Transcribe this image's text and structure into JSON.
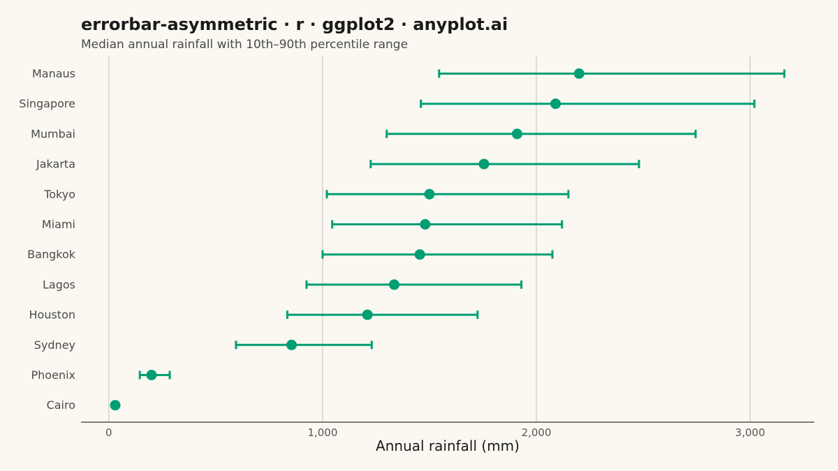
{
  "chart_data": {
    "type": "errorbar",
    "title": "errorbar-asymmetric · r · ggplot2 · anyplot.ai",
    "subtitle": "Median annual rainfall with 10th–90th percentile range",
    "xlabel": "Annual rainfall (mm)",
    "ylabel": "",
    "xlim": [
      -130,
      3300
    ],
    "xticks": [
      0,
      1000,
      2000,
      3000
    ],
    "xtick_labels": [
      "0",
      "1,000",
      "2,000",
      "3,000"
    ],
    "grid": "vertical-major",
    "color": "#009E73",
    "categories": [
      "Manaus",
      "Singapore",
      "Mumbai",
      "Jakarta",
      "Tokyo",
      "Miami",
      "Bangkok",
      "Lagos",
      "Houston",
      "Sydney",
      "Phoenix",
      "Cairo"
    ],
    "median": [
      2200,
      2090,
      1910,
      1755,
      1500,
      1480,
      1455,
      1335,
      1210,
      855,
      200,
      30
    ],
    "low": [
      1545,
      1460,
      1300,
      1225,
      1020,
      1045,
      1000,
      925,
      835,
      595,
      145,
      25
    ],
    "high": [
      3160,
      3020,
      2745,
      2480,
      2150,
      2120,
      2075,
      1930,
      1725,
      1230,
      285,
      38
    ]
  }
}
